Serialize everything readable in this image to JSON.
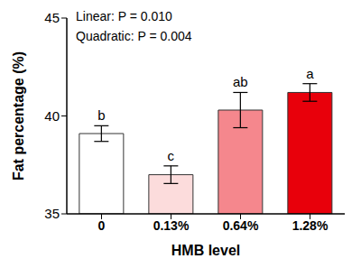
{
  "chart_data": {
    "type": "bar",
    "categories": [
      "0",
      "0.13%",
      "0.64%",
      "1.28%"
    ],
    "values": [
      39.1,
      37.0,
      40.3,
      41.2
    ],
    "errors": [
      0.4,
      0.45,
      0.9,
      0.45
    ],
    "significance": [
      "b",
      "c",
      "ab",
      "a"
    ],
    "colors": [
      "#ffffff",
      "#fcdcdc",
      "#f5878d",
      "#e8000b"
    ],
    "x_label": "HMB level",
    "y_label": "Fat percentage (%)",
    "ylim": [
      35,
      45
    ],
    "yticks": [
      35,
      40,
      45
    ],
    "annotations": [
      "Linear: P = 0.010",
      "Quadratic: P = 0.004"
    ],
    "grid": false
  }
}
